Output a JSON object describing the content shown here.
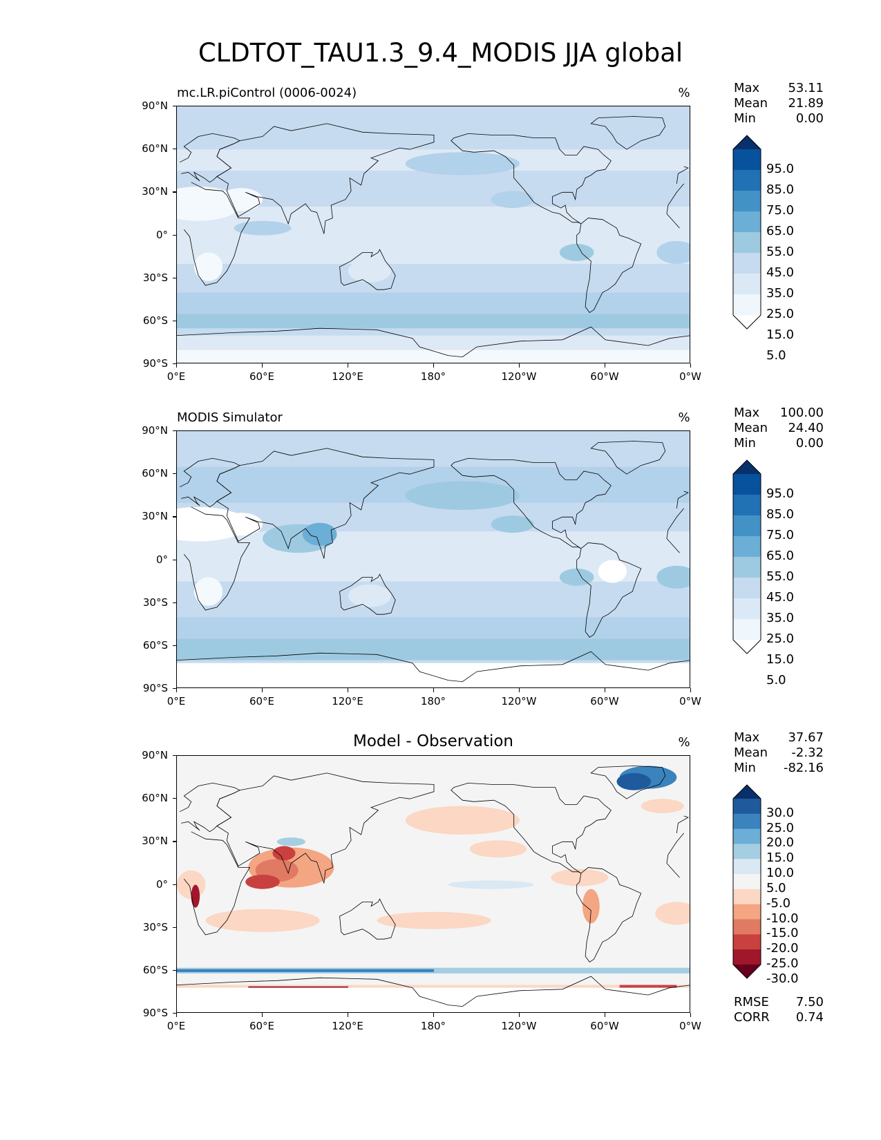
{
  "title": "CLDTOT_TAU1.3_9.4_MODIS JJA global",
  "map": {
    "projection": "PlateCarree",
    "lon_ticks": [
      "0°E",
      "60°E",
      "120°E",
      "180°",
      "120°W",
      "60°W",
      "0°W"
    ],
    "lat_ticks": [
      "90°N",
      "60°N",
      "30°N",
      "0°",
      "30°S",
      "60°S",
      "90°S"
    ]
  },
  "panels": [
    {
      "title": "mc.LR.piControl (0006-0024)",
      "title_style": "left",
      "units": "%",
      "stats": [
        {
          "label": "Max",
          "value": "53.11"
        },
        {
          "label": "Mean",
          "value": "21.89"
        },
        {
          "label": "Min",
          "value": "0.00"
        }
      ],
      "colorbar": {
        "labels": [
          "95.0",
          "85.0",
          "75.0",
          "65.0",
          "55.0",
          "45.0",
          "35.0",
          "25.0",
          "15.0",
          "5.0"
        ],
        "colors": [
          "#08306b",
          "#08519c",
          "#2171b5",
          "#4292c6",
          "#6baed6",
          "#9ecae1",
          "#c6dbef",
          "#dbe9f6",
          "#eff6fc",
          "#ffffff"
        ],
        "levels": [
          0,
          5,
          15,
          25,
          35,
          45,
          55,
          65,
          75,
          85,
          95,
          100
        ]
      }
    },
    {
      "title": "MODIS Simulator",
      "title_style": "left",
      "units": "%",
      "stats": [
        {
          "label": "Max",
          "value": "100.00"
        },
        {
          "label": "Mean",
          "value": "24.40"
        },
        {
          "label": "Min",
          "value": "0.00"
        }
      ],
      "colorbar": {
        "labels": [
          "95.0",
          "85.0",
          "75.0",
          "65.0",
          "55.0",
          "45.0",
          "35.0",
          "25.0",
          "15.0",
          "5.0"
        ],
        "colors": [
          "#08306b",
          "#08519c",
          "#2171b5",
          "#4292c6",
          "#6baed6",
          "#9ecae1",
          "#c6dbef",
          "#dbe9f6",
          "#eff6fc",
          "#ffffff"
        ],
        "levels": [
          0,
          5,
          15,
          25,
          35,
          45,
          55,
          65,
          75,
          85,
          95,
          100
        ]
      }
    },
    {
      "title": "Model - Observation",
      "title_style": "center",
      "units": "%",
      "stats": [
        {
          "label": "Max",
          "value": "37.67"
        },
        {
          "label": "Mean",
          "value": "-2.32"
        },
        {
          "label": "Min",
          "value": "-82.16"
        }
      ],
      "extra_stats": [
        {
          "label": "RMSE",
          "value": "7.50"
        },
        {
          "label": "CORR",
          "value": "0.74"
        }
      ],
      "colorbar": {
        "labels": [
          "30.0",
          "25.0",
          "20.0",
          "15.0",
          "10.0",
          "5.0",
          "-5.0",
          "-10.0",
          "-15.0",
          "-20.0",
          "-25.0",
          "-30.0"
        ],
        "colors": [
          "#08306b",
          "#1f5a9c",
          "#3b83bd",
          "#6baed6",
          "#a6cee3",
          "#d9e8f2",
          "#f4f4f4",
          "#fbd7c4",
          "#f4a582",
          "#e07a63",
          "#c9413f",
          "#a0172b",
          "#67001f"
        ],
        "levels": [
          -40,
          -30,
          -25,
          -20,
          -15,
          -10,
          -5,
          5,
          10,
          15,
          20,
          25,
          30,
          40
        ]
      }
    }
  ]
}
